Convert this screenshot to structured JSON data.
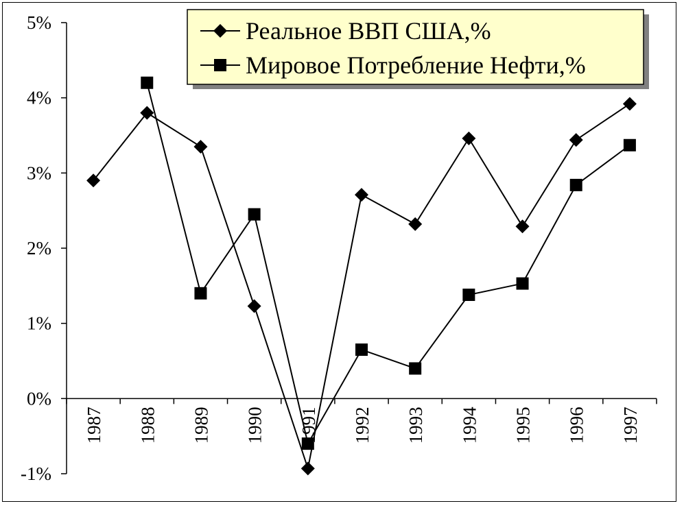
{
  "chart_data": {
    "type": "line",
    "title": "",
    "xlabel": "",
    "ylabel": "",
    "categories": [
      "1987",
      "1988",
      "1989",
      "1990",
      "1991",
      "1992",
      "1993",
      "1994",
      "1995",
      "1996",
      "1997"
    ],
    "y_ticks": [
      "5%",
      "4%",
      "3%",
      "2%",
      "1%",
      "0%",
      "-1%"
    ],
    "ylim": [
      -1,
      5
    ],
    "grid": false,
    "legend_position": "top-right",
    "series": [
      {
        "name": "Реальное ВВП США,%",
        "marker": "diamond",
        "color": "#000000",
        "values": [
          2.9,
          3.8,
          3.35,
          1.23,
          -0.93,
          2.71,
          2.32,
          3.46,
          2.29,
          3.44,
          3.92
        ]
      },
      {
        "name": "Мировое Потребление Нефти,%",
        "marker": "square",
        "color": "#000000",
        "values": [
          null,
          4.2,
          1.4,
          2.45,
          -0.6,
          0.65,
          0.4,
          1.38,
          1.53,
          2.84,
          3.37
        ]
      }
    ]
  },
  "legend": {
    "background": "#ffffcc",
    "shadow": "#808080"
  }
}
